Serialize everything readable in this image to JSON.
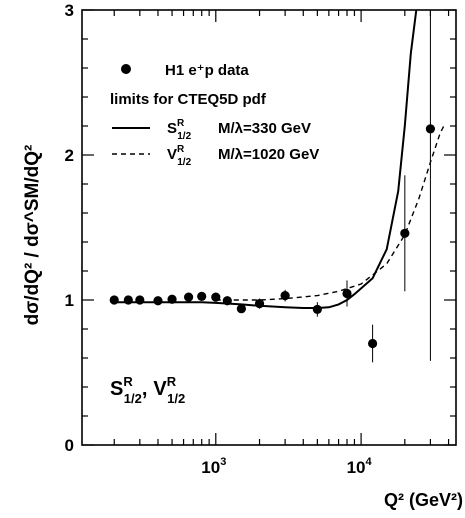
{
  "chart_data": {
    "type": "scatter",
    "ylabel": "dσ/dQ² / dσ^SM/dQ²",
    "xlabel": "Q² (GeV²)",
    "xscale": "log",
    "xlim": [
      120,
      45000
    ],
    "ylim": [
      0,
      3
    ],
    "x_tick_labels": [
      {
        "value": 1000,
        "base": "10",
        "exp": "3"
      },
      {
        "value": 10000,
        "base": "10",
        "exp": "4"
      }
    ],
    "y_ticks": [
      0,
      1,
      2,
      3
    ],
    "legend_position": "top-left",
    "legend": {
      "data_label": "H1 e⁺p data",
      "heading": "limits for CTEQ5D pdf",
      "entries": [
        {
          "symbol_main": "S",
          "symbol_sup": "R",
          "symbol_sub": "1/2",
          "text": "M/λ=330 GeV",
          "style": "solid"
        },
        {
          "symbol_main": "V",
          "symbol_sup": "R",
          "symbol_sub": "1/2",
          "text": "M/λ=1020 GeV",
          "style": "dashed"
        }
      ]
    },
    "annotation": {
      "a_main": "S",
      "a_sup": "R",
      "a_sub": "1/2",
      "sep": ",",
      "b_main": "V",
      "b_sup": "R",
      "b_sub": "1/2"
    },
    "series": [
      {
        "name": "H1 e⁺p data",
        "points": [
          {
            "x": 200,
            "y": 1.0,
            "err": 0.01
          },
          {
            "x": 250,
            "y": 1.0,
            "err": 0.01
          },
          {
            "x": 300,
            "y": 1.0,
            "err": 0.01
          },
          {
            "x": 400,
            "y": 0.995,
            "err": 0.01
          },
          {
            "x": 500,
            "y": 1.005,
            "err": 0.012
          },
          {
            "x": 650,
            "y": 1.02,
            "err": 0.015
          },
          {
            "x": 800,
            "y": 1.025,
            "err": 0.015
          },
          {
            "x": 1000,
            "y": 1.02,
            "err": 0.02
          },
          {
            "x": 1200,
            "y": 0.995,
            "err": 0.03
          },
          {
            "x": 1500,
            "y": 0.94,
            "err": 0.03
          },
          {
            "x": 2000,
            "y": 0.975,
            "err": 0.035
          },
          {
            "x": 3000,
            "y": 1.03,
            "err": 0.04
          },
          {
            "x": 5000,
            "y": 0.935,
            "err": 0.05
          },
          {
            "x": 8000,
            "y": 1.045,
            "err": 0.09
          },
          {
            "x": 12000,
            "y": 0.7,
            "err": 0.13
          },
          {
            "x": 20000,
            "y": 1.46,
            "err": 0.4
          },
          {
            "x": 30000,
            "y": 2.18,
            "err": 1.6
          }
        ]
      },
      {
        "name": "S^R_1/2 M/λ=330 GeV",
        "style": "solid",
        "x": [
          200,
          300,
          500,
          800,
          1000,
          1500,
          2000,
          3000,
          4000,
          5000,
          6000,
          7000,
          8000,
          9000,
          10000,
          12000,
          15000,
          18000,
          20000,
          22000,
          24000
        ],
        "y": [
          0.985,
          0.985,
          0.985,
          0.985,
          0.98,
          0.97,
          0.96,
          0.95,
          0.945,
          0.945,
          0.95,
          0.97,
          1.0,
          1.04,
          1.08,
          1.15,
          1.35,
          1.75,
          2.2,
          2.7,
          3.0
        ]
      },
      {
        "name": "V^R_1/2 M/λ=1020 GeV",
        "style": "dashed",
        "x": [
          1000,
          2000,
          3000,
          5000,
          7000,
          10000,
          15000,
          20000,
          25000,
          30000,
          35000,
          38000
        ],
        "y": [
          1.0,
          1.0,
          1.01,
          1.03,
          1.06,
          1.11,
          1.25,
          1.45,
          1.7,
          1.95,
          2.15,
          2.22
        ]
      }
    ]
  }
}
